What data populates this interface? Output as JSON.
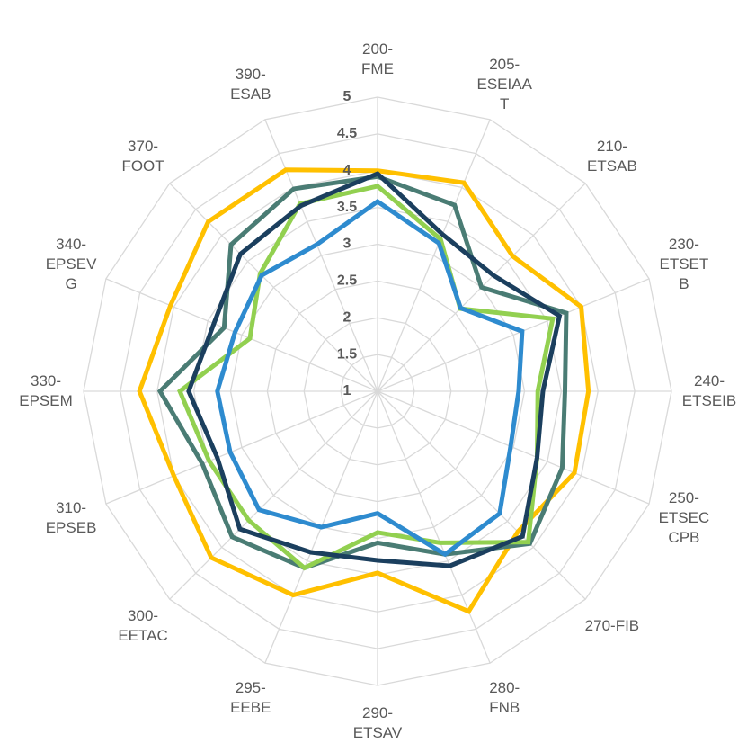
{
  "chart_data": {
    "type": "radar",
    "categories": [
      "200-FME",
      "205-ESEIAAT",
      "210-ETSAB",
      "230-ETSETB",
      "240-ETSEIB",
      "250-ETSECCPB",
      "270-FIB",
      "280-FNB",
      "290-ETSAV",
      "295-EEBE",
      "300-EETAC",
      "310-EPSEB",
      "330-EPSEM",
      "340-EPSEVG",
      "370-FOOT",
      "390-ESAB"
    ],
    "rlim": [
      1,
      5
    ],
    "rticks": [
      1,
      1.5,
      2,
      2.5,
      3,
      3.5,
      4,
      4.5,
      5
    ],
    "grid": true,
    "series": [
      {
        "color": "#ffc000",
        "values": [
          4.0,
          4.07,
          3.6,
          4.0,
          3.87,
          3.9,
          3.7,
          4.24,
          3.47,
          4.0,
          4.2,
          4.0,
          4.24,
          4.05,
          4.26,
          4.26
        ]
      },
      {
        "color": "#4a7c74",
        "values": [
          3.92,
          3.74,
          3.0,
          3.78,
          3.55,
          3.72,
          3.93,
          3.4,
          3.06,
          3.6,
          3.8,
          3.58,
          3.96,
          3.26,
          3.82,
          3.98
        ]
      },
      {
        "color": "#92d050",
        "values": [
          3.79,
          3.24,
          2.59,
          3.58,
          3.18,
          3.35,
          3.9,
          3.23,
          2.92,
          3.6,
          3.48,
          3.48,
          3.69,
          2.88,
          3.26,
          3.76
        ]
      },
      {
        "color": "#2e8bcf",
        "values": [
          3.58,
          3.18,
          2.6,
          3.13,
          2.92,
          2.96,
          3.35,
          3.4,
          2.66,
          3.0,
          3.28,
          3.17,
          3.18,
          3.1,
          3.23,
          3.16
        ]
      },
      {
        "color": "#1b3f5e",
        "values": [
          3.96,
          3.31,
          3.23,
          3.68,
          3.25,
          3.35,
          3.79,
          3.57,
          3.3,
          3.37,
          3.65,
          3.36,
          3.57,
          3.41,
          3.64,
          3.73
        ]
      }
    ]
  }
}
